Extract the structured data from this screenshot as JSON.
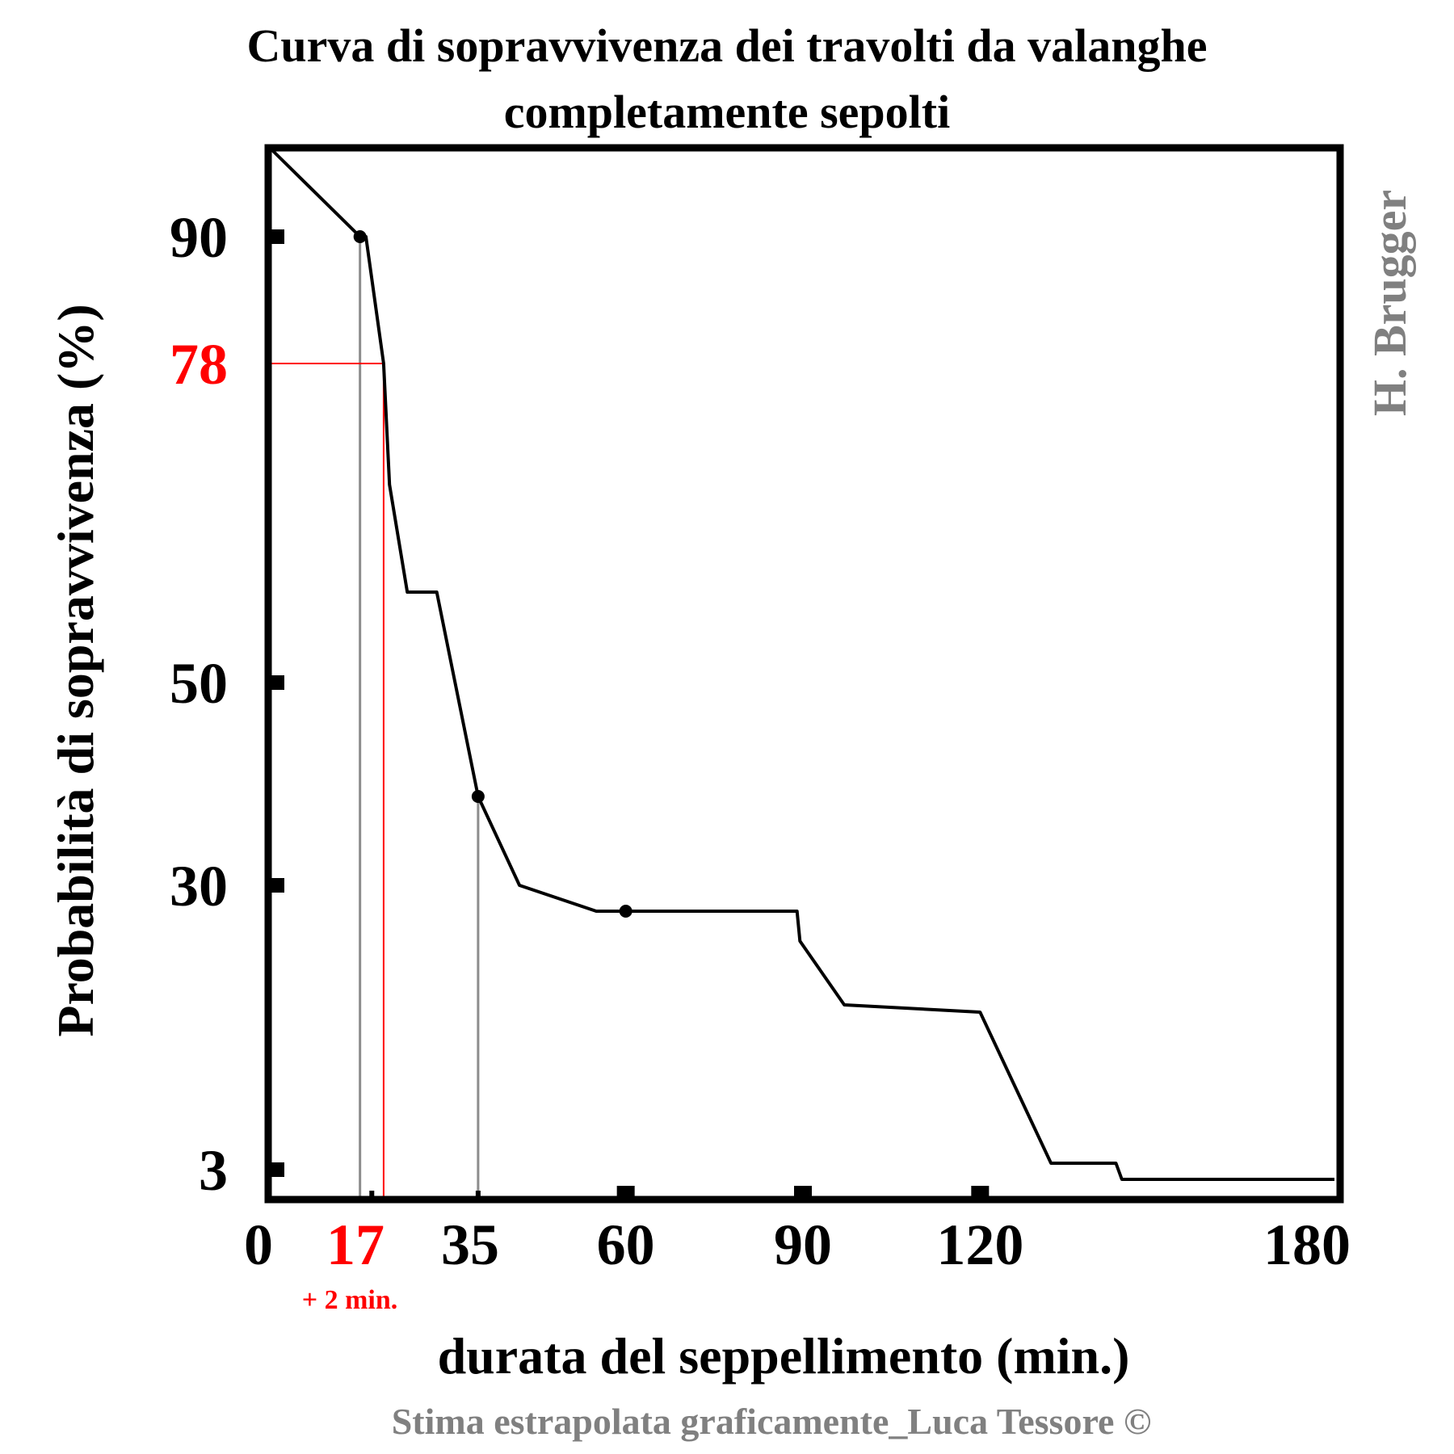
{
  "chart_data": {
    "type": "line",
    "title_line1": "Curva di sopravvivenza dei travolti da valanghe",
    "title_line2": "completamente sepolti",
    "xlabel": "durata del seppellimento (min.)",
    "ylabel": "Probabilità di sopravvivenza (%)",
    "credit_author": "H. Brugger",
    "footnote": "Stima estrapolata graficamente_Luca Tessore ©",
    "x_ticks": [
      "0",
      "17",
      "35",
      "60",
      "90",
      "120",
      "180"
    ],
    "y_ticks": [
      "90",
      "50",
      "30",
      "3"
    ],
    "highlight": {
      "x_label": "17",
      "x_note": "+ 2 min.",
      "y_label": "78",
      "x_value": 19,
      "y_value": 78,
      "color": "#ff0000"
    },
    "series": [
      {
        "x": [
          0,
          15,
          16,
          19,
          20,
          23,
          28,
          35,
          42,
          55,
          89,
          89.5,
          97,
          120,
          132,
          143,
          144,
          180
        ],
        "y": [
          100,
          90,
          90,
          78,
          67,
          54,
          54,
          37,
          30,
          27,
          27,
          24,
          19,
          18,
          4,
          4,
          2,
          2
        ]
      }
    ],
    "markers": [
      {
        "x": 15,
        "y": 90
      },
      {
        "x": 35,
        "y": 37
      },
      {
        "x": 60,
        "y": 27
      }
    ],
    "guide_lines": [
      {
        "x": 15,
        "y": 90
      },
      {
        "x": 35,
        "y": 37
      }
    ],
    "xlim": [
      0,
      180
    ],
    "ylim": [
      0,
      100
    ],
    "grid": false,
    "colors": {
      "line": "#000000",
      "accent": "#ff0000",
      "guide": "#8c8c8c",
      "muted_text": "#808080"
    }
  }
}
